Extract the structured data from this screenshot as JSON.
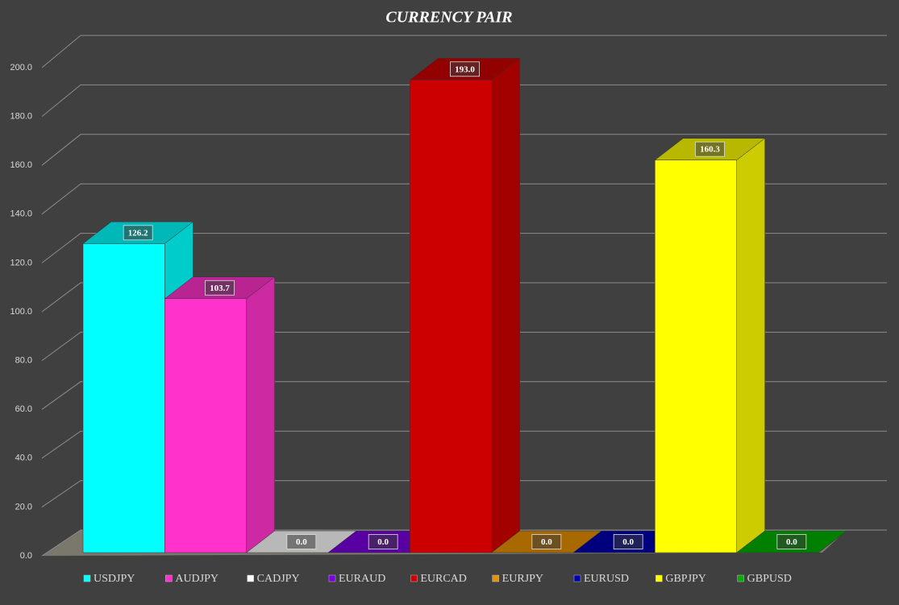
{
  "chart_data": {
    "type": "bar3d",
    "title": "CURRENCY PAIR",
    "categories": [
      "USDJPY",
      "AUDJPY",
      "CADJPY",
      "EURAUD",
      "EURCAD",
      "EURJPY",
      "EURUSD",
      "GBPJPY",
      "GBPUSD"
    ],
    "values": [
      126.2,
      103.7,
      0,
      0,
      193,
      0,
      0,
      160.3,
      0
    ],
    "value_labels": [
      "126.2",
      "103.7",
      "0.0",
      "0.0",
      "193.0",
      "0.0",
      "0.0",
      "160.3",
      "0.0"
    ],
    "colors": [
      "#00ffff",
      "#ff33cc",
      "#ffffff",
      "#7a00e0",
      "#cc0000",
      "#e89200",
      "#0000b0",
      "#ffff00",
      "#00b000"
    ],
    "ylim": [
      0,
      200
    ],
    "yticks": [
      {
        "value": 0,
        "label": "0.0"
      },
      {
        "value": 20,
        "label": "20.0"
      },
      {
        "value": 40,
        "label": "40.0"
      },
      {
        "value": 60,
        "label": "60.0"
      },
      {
        "value": 80,
        "label": "80.0"
      },
      {
        "value": 100,
        "label": "100.0"
      },
      {
        "value": 120,
        "label": "120.0"
      },
      {
        "value": 140,
        "label": "140.0"
      },
      {
        "value": 160,
        "label": "160.0"
      },
      {
        "value": 180,
        "label": "180.0"
      },
      {
        "value": 200,
        "label": "200.0"
      }
    ],
    "grid": true,
    "legend": "bottom"
  }
}
